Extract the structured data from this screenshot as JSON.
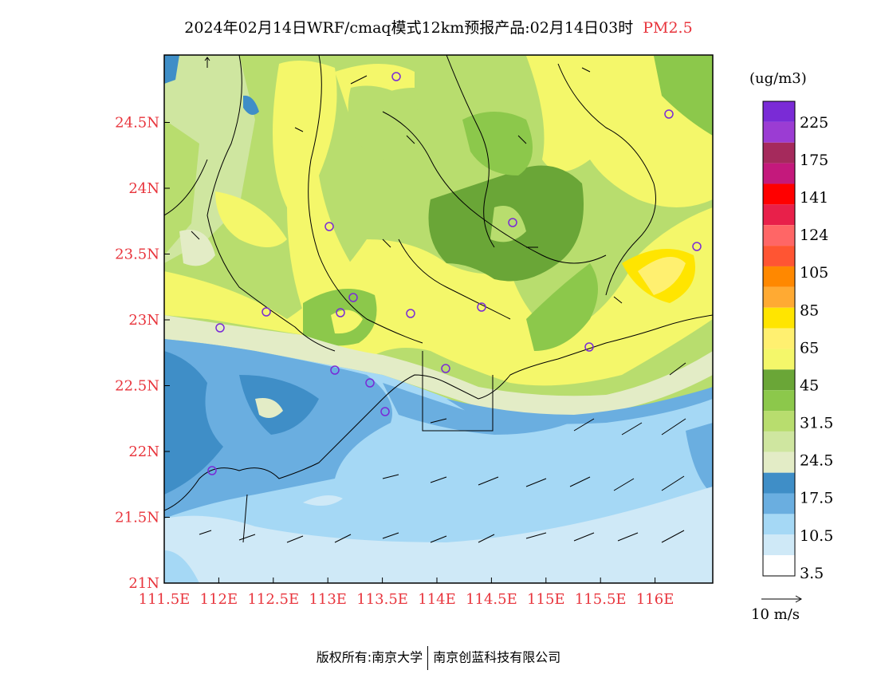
{
  "title": {
    "main": "2024年02月14日WRF/cmaq模式12km预报产品:02月14日03时",
    "pollutant": "PM2.5"
  },
  "units": "(ug/m3)",
  "legend": {
    "labels": [
      "225",
      "175",
      "141",
      "124",
      "105",
      "85",
      "65",
      "45",
      "31.5",
      "24.5",
      "17.5",
      "10.5",
      "3.5"
    ],
    "colors": [
      "#7a2bd6",
      "#9b3cd3",
      "#a52a5c",
      "#c4197c",
      "#ff0000",
      "#e8204a",
      "#ff6666",
      "#ff5533",
      "#ff8800",
      "#ffaa33",
      "#ffe500",
      "#fff070",
      "#f4f76a",
      "#6aa637",
      "#8cc84b",
      "#b8dd6e",
      "#cfe6a0",
      "#e3ecc6",
      "#3f8ec7",
      "#6aaee0",
      "#a5d8f5",
      "#cfe9f7",
      "#ffffff"
    ]
  },
  "axes": {
    "x_ticks": [
      "111.5E",
      "112E",
      "112.5E",
      "113E",
      "113.5E",
      "114E",
      "114.5E",
      "115E",
      "115.5E",
      "116E"
    ],
    "y_ticks": [
      "24.5N",
      "24N",
      "23.5N",
      "23N",
      "22.5N",
      "22N",
      "21.5N",
      "21N"
    ]
  },
  "wind_scale": {
    "label": "10 m/s"
  },
  "footer": {
    "left": "版权所有:南京大学",
    "right": "南京创蓝科技有限公司"
  },
  "stations": [
    "s1",
    "s2",
    "s3",
    "s4",
    "s5",
    "s6",
    "s7",
    "s8",
    "s9",
    "s10",
    "s11",
    "s12",
    "s13",
    "s14",
    "s15",
    "s16",
    "s17"
  ]
}
